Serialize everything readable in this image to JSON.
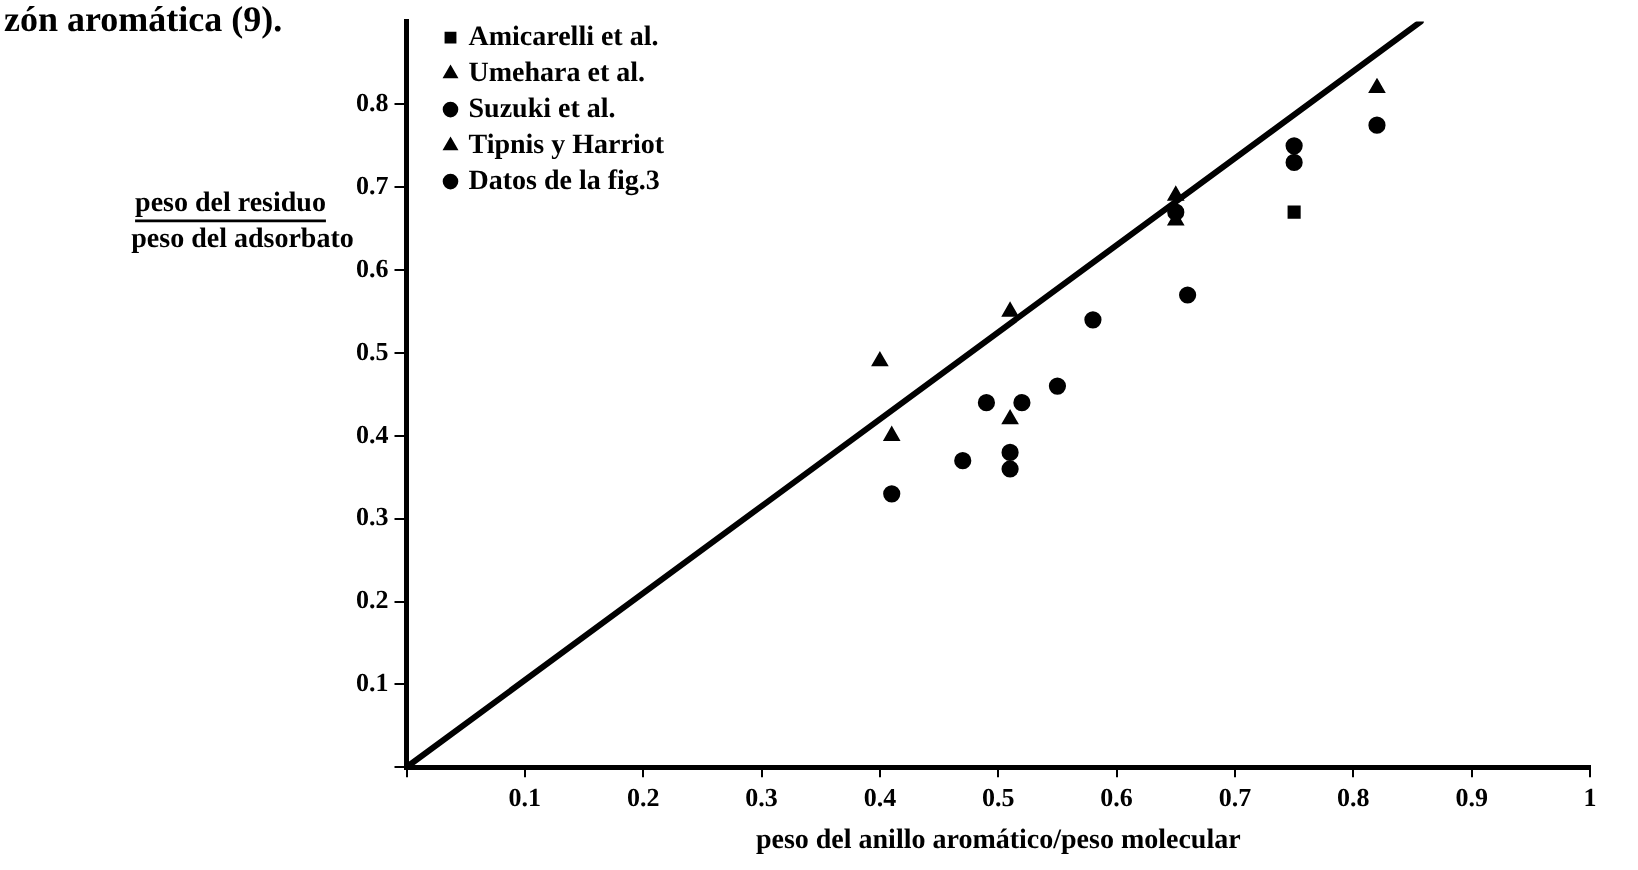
{
  "chart_data": {
    "type": "scatter",
    "xlabel": "peso del anillo aromático/peso molecular",
    "ylabel": "peso del residuo\npeso del adsorbato",
    "annotations": [
      "zón aromática (9)."
    ],
    "xlim": [
      0,
      1.0
    ],
    "ylim": [
      0,
      0.9
    ],
    "xticks": [
      {
        "value": 0,
        "label": null
      },
      0.1,
      0.2,
      0.3,
      0.4,
      0.5,
      0.6,
      0.7,
      0.8,
      0.9,
      1.0
    ],
    "yticks": [
      {
        "value": 0,
        "label": null
      },
      0.1,
      0.2,
      0.3,
      0.4,
      0.5,
      0.6,
      0.7,
      0.8
    ],
    "grid": false,
    "legend": "top left",
    "series": [
      {
        "name": "Amicarelli et al.",
        "color": "#000000",
        "marker": "square",
        "x": [
          0.75
        ],
        "values": [
          0.67
        ]
      },
      {
        "name": "Umehara et al.",
        "color": "#000000",
        "marker": "triangle",
        "x": [
          0.4,
          0.65
        ],
        "values": [
          0.49,
          0.69
        ]
      },
      {
        "name": "Suzuki et al.",
        "color": "#000000",
        "marker": "circle",
        "x": [
          0.66,
          0.75
        ],
        "values": [
          0.57,
          0.73
        ]
      },
      {
        "name": "Tipnis y Harriot",
        "color": "#000000",
        "marker": "triangle",
        "x": [
          0.41,
          0.51,
          0.51,
          0.65,
          0.82
        ],
        "values": [
          0.4,
          0.42,
          0.55,
          0.66,
          0.82
        ]
      },
      {
        "name": "Datos de la fig.3",
        "color": "#000000",
        "marker": "circle",
        "x": [
          0.41,
          0.47,
          0.51,
          0.51,
          0.49,
          0.52,
          0.55,
          0.58,
          0.65,
          0.75,
          0.82
        ],
        "values": [
          0.33,
          0.37,
          0.38,
          0.36,
          0.44,
          0.44,
          0.46,
          0.54,
          0.67,
          0.75,
          0.775
        ]
      },
      {
        "type": "line",
        "color": "#000000",
        "x": [
          0,
          0.857
        ],
        "values": [
          0,
          0.9
        ]
      }
    ]
  }
}
